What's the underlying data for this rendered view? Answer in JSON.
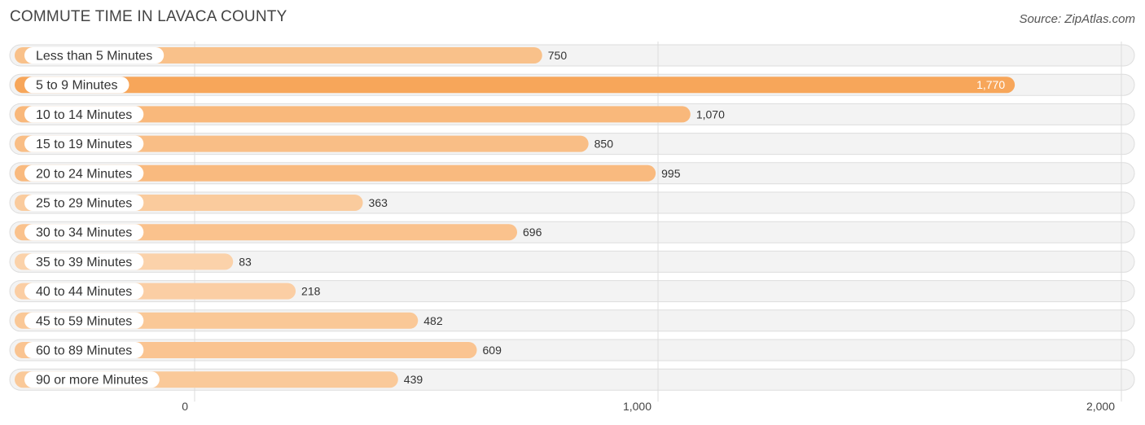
{
  "title": "COMMUTE TIME IN LAVACA COUNTY",
  "source": "Source: ZipAtlas.com",
  "chart_data": {
    "type": "bar",
    "orientation": "horizontal",
    "title": "COMMUTE TIME IN LAVACA COUNTY",
    "categories": [
      "Less than 5 Minutes",
      "5 to 9 Minutes",
      "10 to 14 Minutes",
      "15 to 19 Minutes",
      "20 to 24 Minutes",
      "25 to 29 Minutes",
      "30 to 34 Minutes",
      "35 to 39 Minutes",
      "40 to 44 Minutes",
      "45 to 59 Minutes",
      "60 to 89 Minutes",
      "90 or more Minutes"
    ],
    "values": [
      750,
      1770,
      1070,
      850,
      995,
      363,
      696,
      83,
      218,
      482,
      609,
      439
    ],
    "value_labels": [
      "750",
      "1,770",
      "1,070",
      "850",
      "995",
      "363",
      "696",
      "83",
      "218",
      "482",
      "609",
      "439"
    ],
    "xlim": [
      0,
      2000
    ],
    "ticks": [
      0,
      1000,
      2000
    ],
    "tick_labels": [
      "0",
      "1,000",
      "2,000"
    ],
    "grid": true,
    "legend": "none",
    "colors": {
      "bar_max": "#f7a65a",
      "bar_min": "#fbd2aa"
    }
  }
}
